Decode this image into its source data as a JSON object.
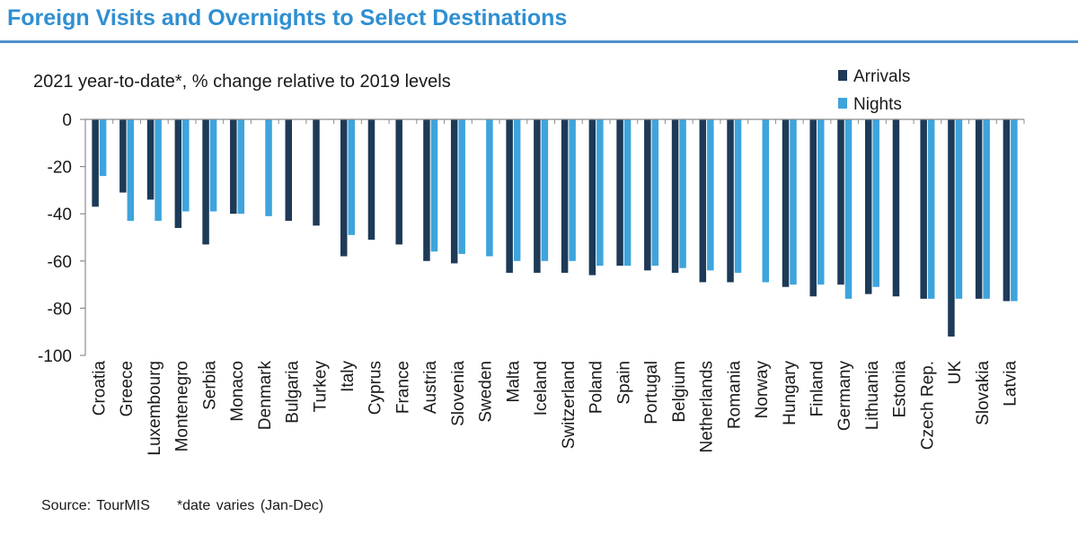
{
  "title": "Foreign Visits and Overnights to Select Destinations",
  "subtitle": "2021 year-to-date*, % change relative to 2019 levels",
  "source": "Source:  TourMIS",
  "footnote": "*date varies  (Jan-Dec)",
  "colors": {
    "title": "#2f8fd2",
    "arrivals": "#1d3a57",
    "nights": "#3ea4dc",
    "axis": "#8c8c8c"
  },
  "chart_data": {
    "type": "bar",
    "ylim": [
      -100,
      0
    ],
    "yticks": [
      0,
      -20,
      -40,
      -60,
      -80,
      -100
    ],
    "legend_position": "top-right",
    "categories": [
      "Croatia",
      "Greece",
      "Luxembourg",
      "Montenegro",
      "Serbia",
      "Monaco",
      "Denmark",
      "Bulgaria",
      "Turkey",
      "Italy",
      "Cyprus",
      "France",
      "Austria",
      "Slovenia",
      "Sweden",
      "Malta",
      "Iceland",
      "Switzerland",
      "Poland",
      "Spain",
      "Portugal",
      "Belgium",
      "Netherlands",
      "Romania",
      "Norway",
      "Hungary",
      "Finland",
      "Germany",
      "Lithuania",
      "Estonia",
      "Czech Rep.",
      "UK",
      "Slovakia",
      "Latvia"
    ],
    "series": [
      {
        "name": "Arrivals",
        "values": [
          -37,
          -31,
          -34,
          -46,
          -53,
          -40,
          null,
          -43,
          -45,
          -58,
          -51,
          -53,
          -60,
          -61,
          null,
          -65,
          -65,
          -65,
          -66,
          -62,
          -64,
          -65,
          -69,
          -69,
          null,
          -71,
          -75,
          -70,
          -74,
          -75,
          -76,
          -92,
          -76,
          -77
        ]
      },
      {
        "name": "Nights",
        "values": [
          -24,
          -43,
          -43,
          -39,
          -39,
          -40,
          -41,
          null,
          null,
          -49,
          null,
          null,
          -56,
          -57,
          -58,
          -60,
          -60,
          -60,
          -62,
          -62,
          -62,
          -63,
          -64,
          -65,
          -69,
          -70,
          -70,
          -76,
          -71,
          null,
          -76,
          -76,
          -76,
          -77
        ]
      }
    ]
  }
}
